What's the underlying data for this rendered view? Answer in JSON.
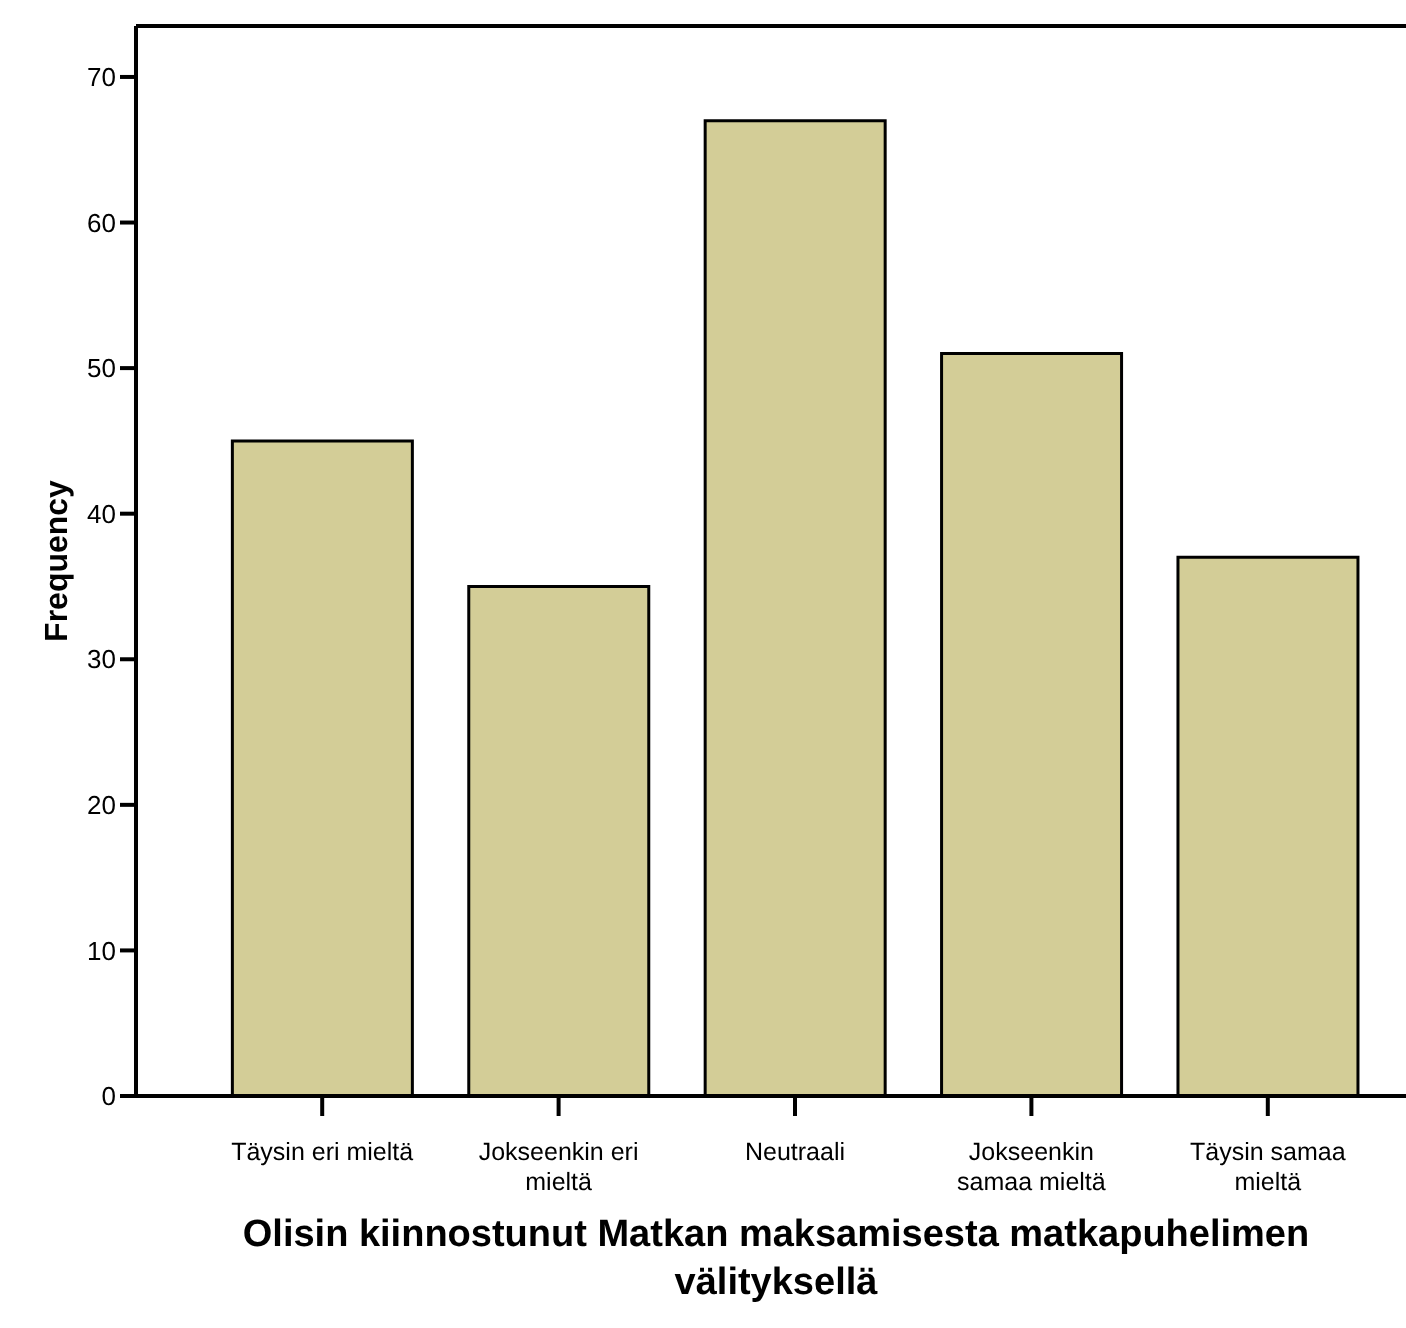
{
  "chart_data": {
    "type": "bar",
    "xlabel": "Olisin kiinnostunut Matkan maksamisesta matkapuhelimen välityksellä",
    "ylabel": "Frequency",
    "categories": [
      "Täysin eri mieltä",
      "Jokseenkin eri mieltä",
      "Neutraali",
      "Jokseenkin samaa mieltä",
      "Täysin samaa mieltä"
    ],
    "values": [
      45,
      35,
      67,
      51,
      37
    ],
    "color": "#d3cd97",
    "ylim": [
      0,
      73.5
    ],
    "yticks": [
      0,
      10,
      20,
      30,
      40,
      50,
      60,
      70
    ],
    "grid": false,
    "legend": false
  }
}
